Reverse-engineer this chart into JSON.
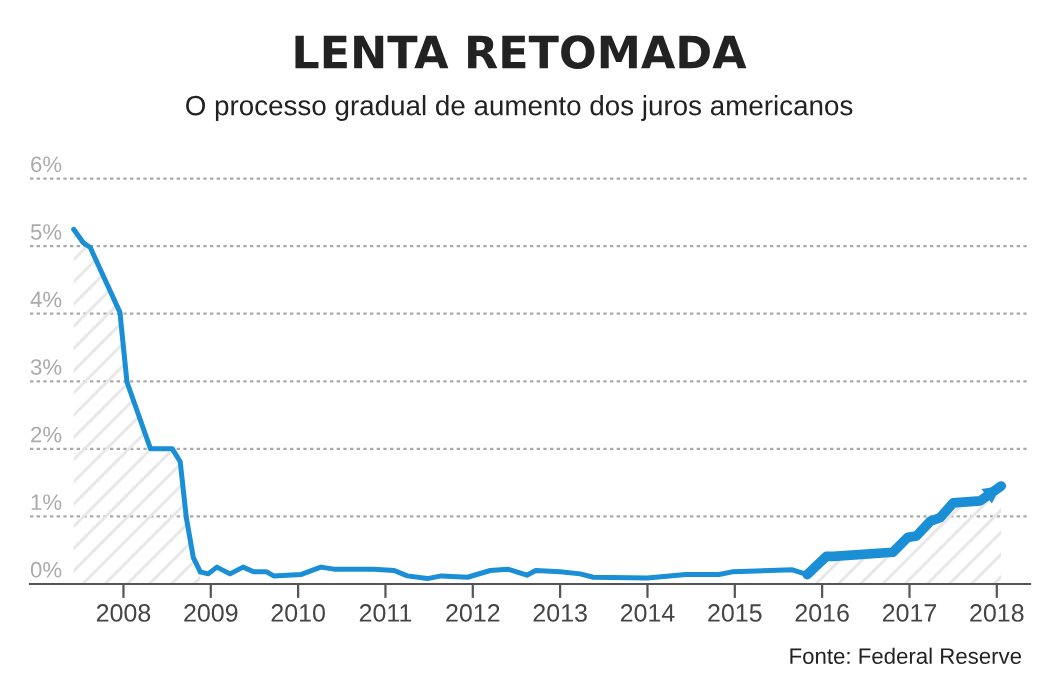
{
  "chart_data": {
    "type": "line",
    "title": "LENTA RETOMADA",
    "subtitle": "O processo gradual de aumento dos juros americanos",
    "annotations": [
      "Fonte: Federal Reserve"
    ],
    "series": [
      {
        "type": "area",
        "color": "#1a8fd6",
        "x": [
          2007.43,
          2007.54,
          2007.62,
          2007.96,
          2008.04,
          2008.31,
          2008.56,
          2008.65,
          2008.72,
          2008.8,
          2008.88
        ],
        "values": [
          5.25,
          5.05,
          4.98,
          4.02,
          2.99,
          2.0,
          2.0,
          1.81,
          0.98,
          0.39,
          0.18
        ]
      },
      {
        "color": "#1a8fd6",
        "x": [
          2008.88,
          2008.97,
          2009.07,
          2009.22,
          2009.37,
          2009.49,
          2009.64,
          2009.72,
          2010.03,
          2010.26,
          2010.41,
          2010.87,
          2011.1,
          2011.25,
          2011.48,
          2011.64,
          2011.94,
          2012.2,
          2012.4,
          2012.62,
          2012.72,
          2013.0,
          2013.23,
          2013.38,
          2014.0,
          2014.44,
          2014.82,
          2014.97,
          2015.66,
          2015.83
        ],
        "values": [
          0.18,
          0.15,
          0.25,
          0.15,
          0.25,
          0.18,
          0.18,
          0.12,
          0.14,
          0.25,
          0.22,
          0.22,
          0.2,
          0.12,
          0.08,
          0.12,
          0.1,
          0.2,
          0.22,
          0.13,
          0.2,
          0.18,
          0.15,
          0.1,
          0.09,
          0.14,
          0.14,
          0.18,
          0.21,
          0.14
        ]
      },
      {
        "type": "area",
        "color": "#1a8fd6",
        "x": [
          2015.83,
          2016.05,
          2016.13,
          2016.81,
          2016.98,
          2017.08,
          2017.24,
          2017.35,
          2017.5,
          2017.81,
          2018.05
        ],
        "values": [
          0.14,
          0.41,
          0.41,
          0.47,
          0.69,
          0.71,
          0.93,
          0.98,
          1.2,
          1.23,
          1.45
        ]
      }
    ],
    "xlim": [
      2006.93,
      2018.38
    ],
    "xticks": [
      2008,
      2009,
      2010,
      2011,
      2012,
      2013,
      2014,
      2015,
      2016,
      2017,
      2018
    ],
    "ylim": [
      0,
      6
    ],
    "yticks": [
      {
        "value": 0,
        "label": "0%"
      },
      {
        "value": 1,
        "label": "1%"
      },
      {
        "value": 2,
        "label": "2%"
      },
      {
        "value": 3,
        "label": "3%"
      },
      {
        "value": 4,
        "label": "4%"
      },
      {
        "value": 5,
        "label": "5%"
      },
      {
        "value": 6,
        "label": "6%"
      }
    ],
    "grid": "y",
    "line_style": "solid"
  }
}
